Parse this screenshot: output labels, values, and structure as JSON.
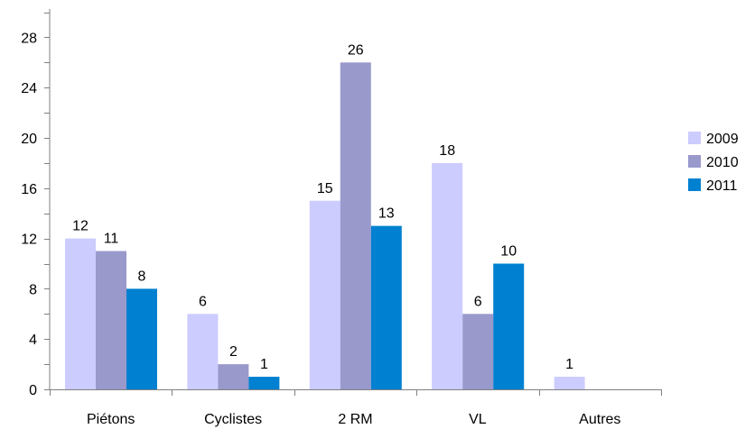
{
  "chart_data": {
    "type": "bar",
    "categories": [
      "Piétons",
      "Cyclistes",
      "2 RM",
      "VL",
      "Autres"
    ],
    "series": [
      {
        "name": "2009",
        "values": [
          12,
          6,
          15,
          18,
          1
        ],
        "color": "#ccccff"
      },
      {
        "name": "2010",
        "values": [
          11,
          2,
          26,
          6,
          0
        ],
        "color": "#9999cc"
      },
      {
        "name": "2011",
        "values": [
          8,
          1,
          13,
          10,
          0
        ],
        "color": "#0080d0"
      }
    ],
    "data_labels": [
      [
        "12",
        "11",
        "8"
      ],
      [
        "6",
        "2",
        "1"
      ],
      [
        "15",
        "26",
        "13"
      ],
      [
        "18",
        "6",
        "10"
      ],
      [
        "1",
        "",
        ""
      ]
    ],
    "ylim": [
      0,
      30
    ],
    "yticks": [
      0,
      4,
      8,
      12,
      16,
      20,
      24,
      28
    ],
    "grid": false,
    "legend_position": "right"
  }
}
